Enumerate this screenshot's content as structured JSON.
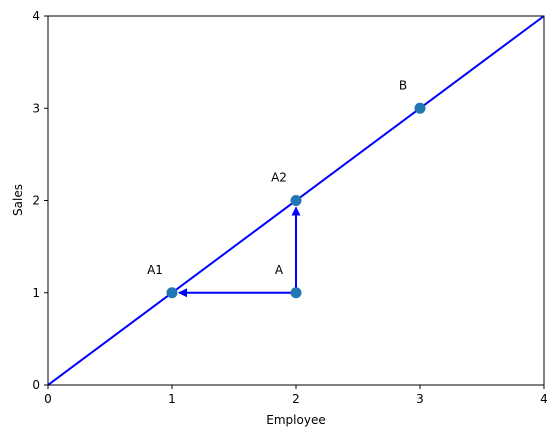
{
  "chart_data": {
    "type": "scatter",
    "title": "",
    "xlabel": "Employee",
    "ylabel": "Sales",
    "xlim": [
      0,
      4
    ],
    "ylim": [
      0,
      4
    ],
    "xticks": [
      0,
      1,
      2,
      3,
      4
    ],
    "yticks": [
      0,
      1,
      2,
      3,
      4
    ],
    "grid": false,
    "line": {
      "x": [
        0,
        4
      ],
      "y": [
        0,
        4
      ],
      "color": "#0000ff"
    },
    "points": [
      {
        "label": "A1",
        "x": 1,
        "y": 1
      },
      {
        "label": "A",
        "x": 2,
        "y": 1
      },
      {
        "label": "A2",
        "x": 2,
        "y": 2
      },
      {
        "label": "B",
        "x": 3,
        "y": 3
      }
    ],
    "point_color": "#1f77b4",
    "arrows": [
      {
        "from": [
          2,
          1
        ],
        "to": [
          1,
          1
        ],
        "color": "#0000ff"
      },
      {
        "from": [
          2,
          1
        ],
        "to": [
          2,
          2
        ],
        "color": "#0000ff"
      }
    ]
  }
}
